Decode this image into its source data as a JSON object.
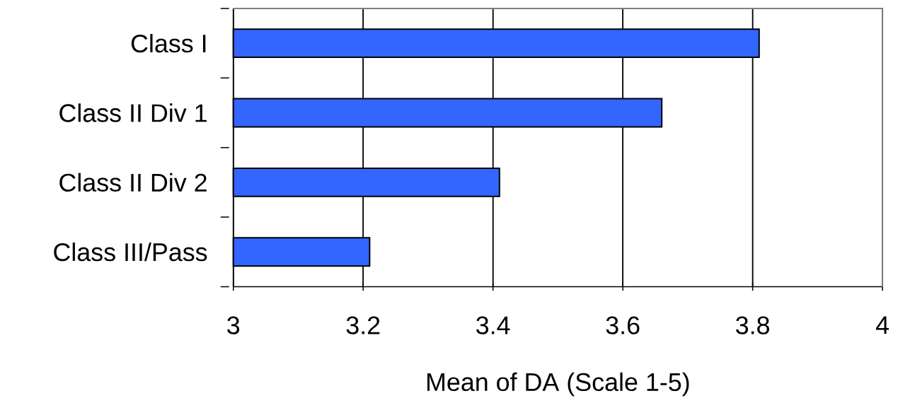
{
  "chart_data": {
    "type": "bar",
    "orientation": "horizontal",
    "categories": [
      "Class I",
      "Class II Div 1",
      "Class II Div 2",
      "Class III/Pass"
    ],
    "values": [
      3.81,
      3.66,
      3.41,
      3.21
    ],
    "color": "#3366ff",
    "xlim": [
      3,
      4
    ],
    "xticks": [
      3,
      3.2,
      3.4,
      3.6,
      3.8,
      4
    ],
    "xlabel": "Mean of DA (Scale 1-5)",
    "grid": "x"
  }
}
